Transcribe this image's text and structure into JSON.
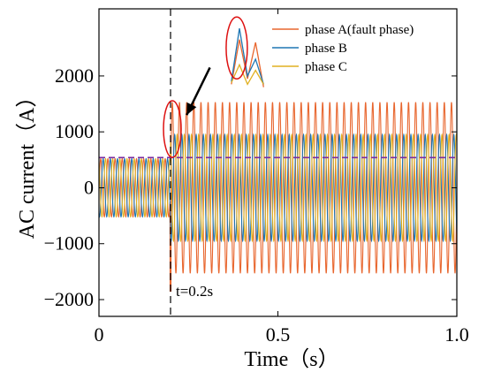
{
  "chart_data": {
    "type": "line",
    "title": "",
    "xlabel": "Time（s）",
    "ylabel": "AC current（A）",
    "xlim": [
      0,
      1.0
    ],
    "ylim": [
      -2300,
      3200
    ],
    "x_ticks": [
      0,
      0.5,
      1.0
    ],
    "x_tick_labels": [
      "0",
      "0.5",
      "1.0"
    ],
    "y_ticks": [
      -2000,
      -1000,
      0,
      1000,
      2000
    ],
    "y_tick_labels": [
      "−2000",
      "−1000",
      "0",
      "1000",
      "2000"
    ],
    "grid": false,
    "legend_position": "top-right",
    "frequency_hz": 50,
    "fault_time_s": 0.2,
    "series": [
      {
        "name": "phase A(fault phase)",
        "color": "#e8662e",
        "phase_deg": 0,
        "amplitude_pre_fault": 520,
        "amplitude_post_fault": 1530,
        "fault_spike_min": -1850
      },
      {
        "name": "phase B",
        "color": "#1f77b4",
        "phase_deg": -120,
        "amplitude_pre_fault": 520,
        "amplitude_post_fault": 950
      },
      {
        "name": "phase C",
        "color": "#e0b020",
        "phase_deg": 120,
        "amplitude_pre_fault": 520,
        "amplitude_post_fault": 950
      }
    ],
    "reference_line": {
      "y": 540,
      "color": "#7a2aa0",
      "style": "dashed"
    },
    "annotations": [
      {
        "text": "t=0.2s",
        "x": 0.2,
        "y": -2000
      }
    ],
    "inset": {
      "x_range": [
        0.37,
        0.46
      ],
      "series": [
        {
          "name": "phase A(fault phase)",
          "values": [
            1850,
            2650,
            1950,
            2600,
            1800
          ]
        },
        {
          "name": "phase B",
          "values": [
            1900,
            2850,
            2000,
            2300,
            1850
          ]
        },
        {
          "name": "phase C",
          "values": [
            1880,
            2200,
            1850,
            2100,
            1850
          ]
        }
      ]
    }
  }
}
